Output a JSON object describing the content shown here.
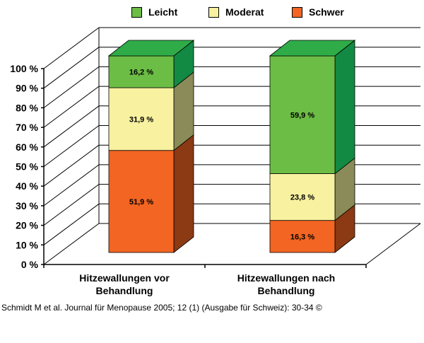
{
  "chart_data": {
    "type": "bar",
    "stacked": true,
    "categories": [
      "Hitzewallungen vor Behandlung",
      "Hitzewallungen nach Behandlung"
    ],
    "category_lines": [
      [
        "Hitzewallungen vor",
        "Behandlung"
      ],
      [
        "Hitzewallungen nach",
        "Behandlung"
      ]
    ],
    "series": [
      {
        "name": "Schwer",
        "values": [
          51.9,
          16.3
        ],
        "labels": [
          "51,9 %",
          "16,3 %"
        ],
        "color": "#f26522",
        "side_color": "#8b3a14"
      },
      {
        "name": "Moderat",
        "values": [
          31.9,
          23.8
        ],
        "labels": [
          "31,9 %",
          "23,8 %"
        ],
        "color": "#f7f1a0",
        "side_color": "#8a8b58"
      },
      {
        "name": "Leicht",
        "values": [
          16.2,
          59.9
        ],
        "labels": [
          "16,2 %",
          "59,9 %"
        ],
        "color": "#6cbd45",
        "side_color": "#138a44",
        "top_color": "#2fac48"
      }
    ],
    "yticks": [
      "0 %",
      "10 %",
      "20 %",
      "30 %",
      "40 %",
      "50 %",
      "60 %",
      "70 %",
      "80 %",
      "90 %",
      "100 %"
    ],
    "ylim": [
      0,
      100
    ],
    "legend_position": "top",
    "grid": true
  },
  "legend": [
    {
      "label": "Leicht",
      "color": "#6cbd45"
    },
    {
      "label": "Moderat",
      "color": "#f7f1a0"
    },
    {
      "label": "Schwer",
      "color": "#f26522"
    }
  ],
  "source_text": "Schmidt M et al. Journal für Menopause 2005; 12 (1) (Ausgabe für Schweiz): 30-34 ©"
}
